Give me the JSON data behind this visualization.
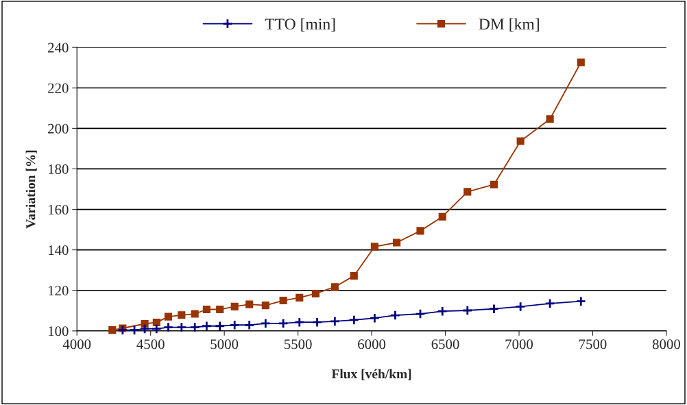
{
  "chart_data": {
    "type": "line",
    "xlabel": "Flux [véh/km]",
    "ylabel": "Variation [%]",
    "xlim": [
      4000,
      8000
    ],
    "xticks": [
      4000,
      4500,
      5000,
      5500,
      6000,
      6500,
      7000,
      7500,
      8000
    ],
    "ylim": [
      100,
      240
    ],
    "yticks": [
      100,
      120,
      140,
      160,
      180,
      200,
      220,
      240
    ],
    "grid": "y",
    "legend": "top",
    "series": [
      {
        "name": "TTO [min]",
        "color": "#000080",
        "marker": "cross",
        "x": [
          4310,
          4390,
          4460,
          4540,
          4620,
          4710,
          4800,
          4880,
          4970,
          5070,
          5170,
          5280,
          5400,
          5510,
          5630,
          5750,
          5880,
          6020,
          6160,
          6330,
          6480,
          6650,
          6830,
          7010,
          7210,
          7420
        ],
        "values": [
          100.4,
          100.4,
          101.0,
          101.0,
          101.8,
          101.8,
          101.8,
          102.4,
          102.4,
          102.9,
          102.9,
          103.7,
          103.7,
          104.3,
          104.3,
          104.7,
          105.4,
          106.3,
          107.7,
          108.4,
          109.7,
          110.1,
          110.9,
          112.0,
          113.5,
          114.6
        ]
      },
      {
        "name": "DM [km]",
        "color": "#993300",
        "marker": "square",
        "x": [
          4240,
          4310,
          4460,
          4540,
          4620,
          4710,
          4800,
          4880,
          4970,
          5070,
          5170,
          5280,
          5400,
          5510,
          5620,
          5750,
          5880,
          6020,
          6170,
          6330,
          6480,
          6650,
          6830,
          7010,
          7210,
          7420
        ],
        "values": [
          100.4,
          101.3,
          103.5,
          104.2,
          107.0,
          107.8,
          108.4,
          110.6,
          110.6,
          112.0,
          113.1,
          112.6,
          115.0,
          116.4,
          118.4,
          121.7,
          127.2,
          141.6,
          143.6,
          149.4,
          156.4,
          168.7,
          172.3,
          193.7,
          204.6,
          232.6
        ]
      }
    ]
  }
}
